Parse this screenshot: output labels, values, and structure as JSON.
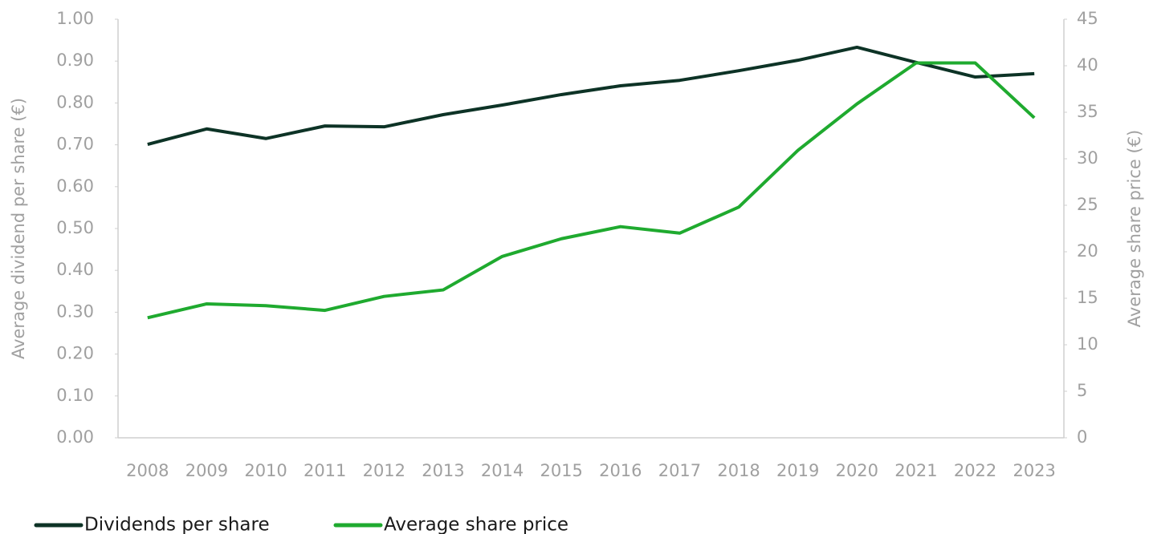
{
  "chart_data": {
    "type": "line",
    "categories": [
      "2008",
      "2009",
      "2010",
      "2011",
      "2012",
      "2013",
      "2014",
      "2015",
      "2016",
      "2017",
      "2018",
      "2019",
      "2020",
      "2021",
      "2022",
      "2023"
    ],
    "ylabel": "Average dividend per share (€)",
    "y2label": "Average share price (€)",
    "ylim": [
      0,
      1
    ],
    "yticks": [
      {
        "value": 0,
        "label": "0.00"
      },
      {
        "value": 0.1,
        "label": "0.10"
      },
      {
        "value": 0.2,
        "label": "0.20"
      },
      {
        "value": 0.3,
        "label": "0.30"
      },
      {
        "value": 0.4,
        "label": "0.40"
      },
      {
        "value": 0.5,
        "label": "0.50"
      },
      {
        "value": 0.6,
        "label": "0.60"
      },
      {
        "value": 0.7,
        "label": "0.70"
      },
      {
        "value": 0.8,
        "label": "0.80"
      },
      {
        "value": 0.9,
        "label": "0.90"
      },
      {
        "value": 1,
        "label": "1.00"
      }
    ],
    "y2lim": [
      0,
      45
    ],
    "y2ticks": [
      0,
      5,
      10,
      15,
      20,
      25,
      30,
      35,
      40,
      45
    ],
    "legend": "bottom-left",
    "series": [
      {
        "name": "Dividends per share",
        "color": "#0d3326",
        "values": [
          0.701,
          0.738,
          0.715,
          0.745,
          0.743,
          0.772,
          0.795,
          0.82,
          0.841,
          0.854,
          0.877,
          0.902,
          0.933,
          0.897,
          0.862,
          0.87
        ]
      },
      {
        "name": "Average share price",
        "color": "#1faa2f",
        "axis": "y2",
        "values": [
          12.9,
          14.4,
          14.2,
          13.7,
          15.2,
          15.9,
          19.5,
          21.4,
          22.7,
          22.0,
          24.8,
          30.9,
          35.9,
          40.3,
          40.3,
          34.4
        ]
      }
    ]
  }
}
